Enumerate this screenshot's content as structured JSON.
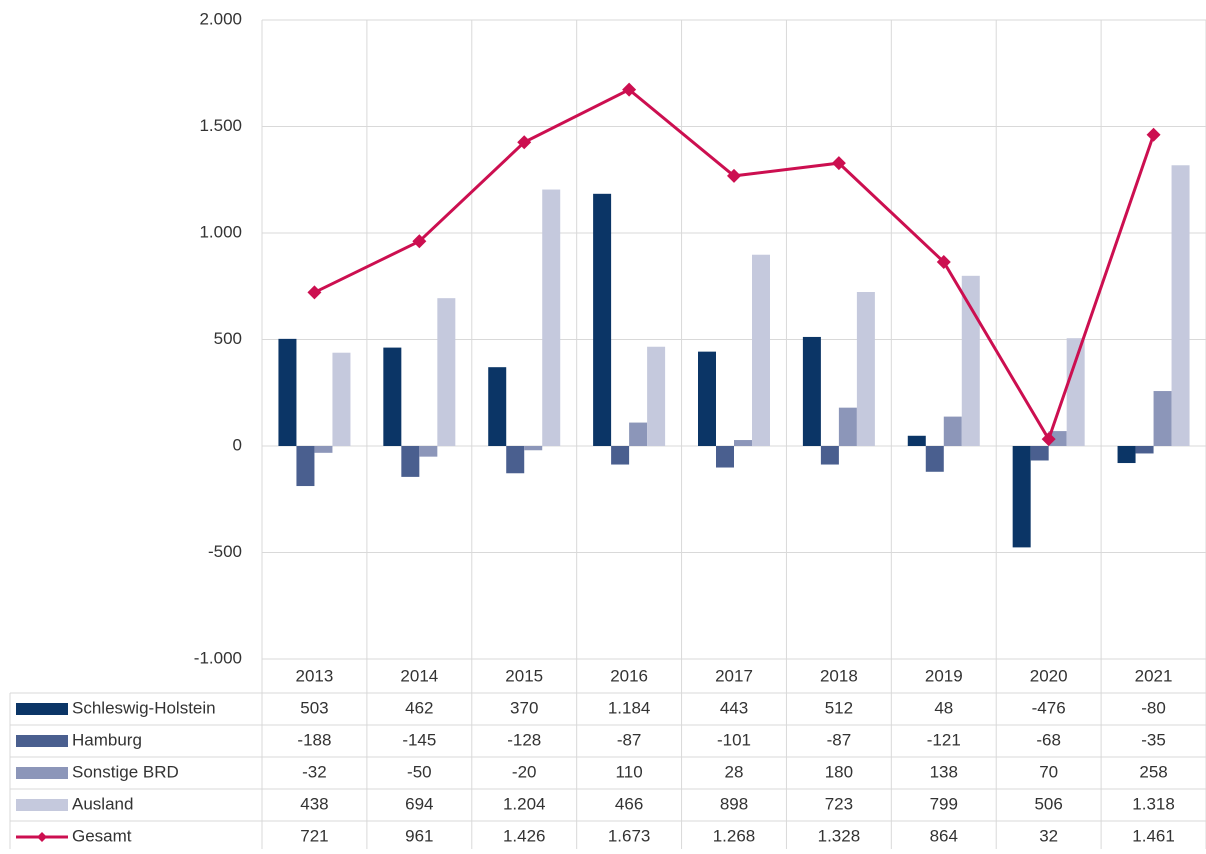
{
  "chart_data": {
    "type": "bar",
    "categories": [
      "2013",
      "2014",
      "2015",
      "2016",
      "2017",
      "2018",
      "2019",
      "2020",
      "2021"
    ],
    "ylim": [
      -1000,
      2000
    ],
    "yticks": [
      {
        "value": -1000,
        "label": "-1.000"
      },
      -500,
      0,
      500,
      {
        "value": 1000,
        "label": "1.000"
      },
      {
        "value": 1500,
        "label": "1.500"
      },
      {
        "value": 2000,
        "label": "2.000"
      }
    ],
    "grid": true,
    "series": [
      {
        "name": "Schleswig-Holstein",
        "color": "#0b3566",
        "values": [
          503,
          462,
          370,
          1184,
          443,
          512,
          48,
          -476,
          -80
        ],
        "value_labels": [
          "503",
          "462",
          "370",
          "1.184",
          "443",
          "512",
          "48",
          "-476",
          "-80"
        ]
      },
      {
        "name": "Hamburg",
        "color": "#4a5f8f",
        "values": [
          -188,
          -145,
          -128,
          -87,
          -101,
          -87,
          -121,
          -68,
          -35
        ],
        "value_labels": [
          "-188",
          "-145",
          "-128",
          "-87",
          "-101",
          "-87",
          "-121",
          "-68",
          "-35"
        ]
      },
      {
        "name": "Sonstige BRD",
        "color": "#8c96b9",
        "values": [
          -32,
          -50,
          -20,
          110,
          28,
          180,
          138,
          70,
          258
        ],
        "value_labels": [
          "-32",
          "-50",
          "-20",
          "110",
          "28",
          "180",
          "138",
          "70",
          "258"
        ]
      },
      {
        "name": "Ausland",
        "color": "#c5c9dd",
        "values": [
          438,
          694,
          1204,
          466,
          898,
          723,
          799,
          506,
          1318
        ],
        "value_labels": [
          "438",
          "694",
          "1.204",
          "466",
          "898",
          "723",
          "799",
          "506",
          "1.318"
        ]
      },
      {
        "name": "Gesamt",
        "type": "line",
        "color": "#cc0f50",
        "values": [
          721,
          961,
          1426,
          1673,
          1268,
          1328,
          864,
          32,
          1461
        ],
        "value_labels": [
          "721",
          "961",
          "1.426",
          "1.673",
          "1.268",
          "1.328",
          "864",
          "32",
          "1.461"
        ]
      }
    ]
  }
}
